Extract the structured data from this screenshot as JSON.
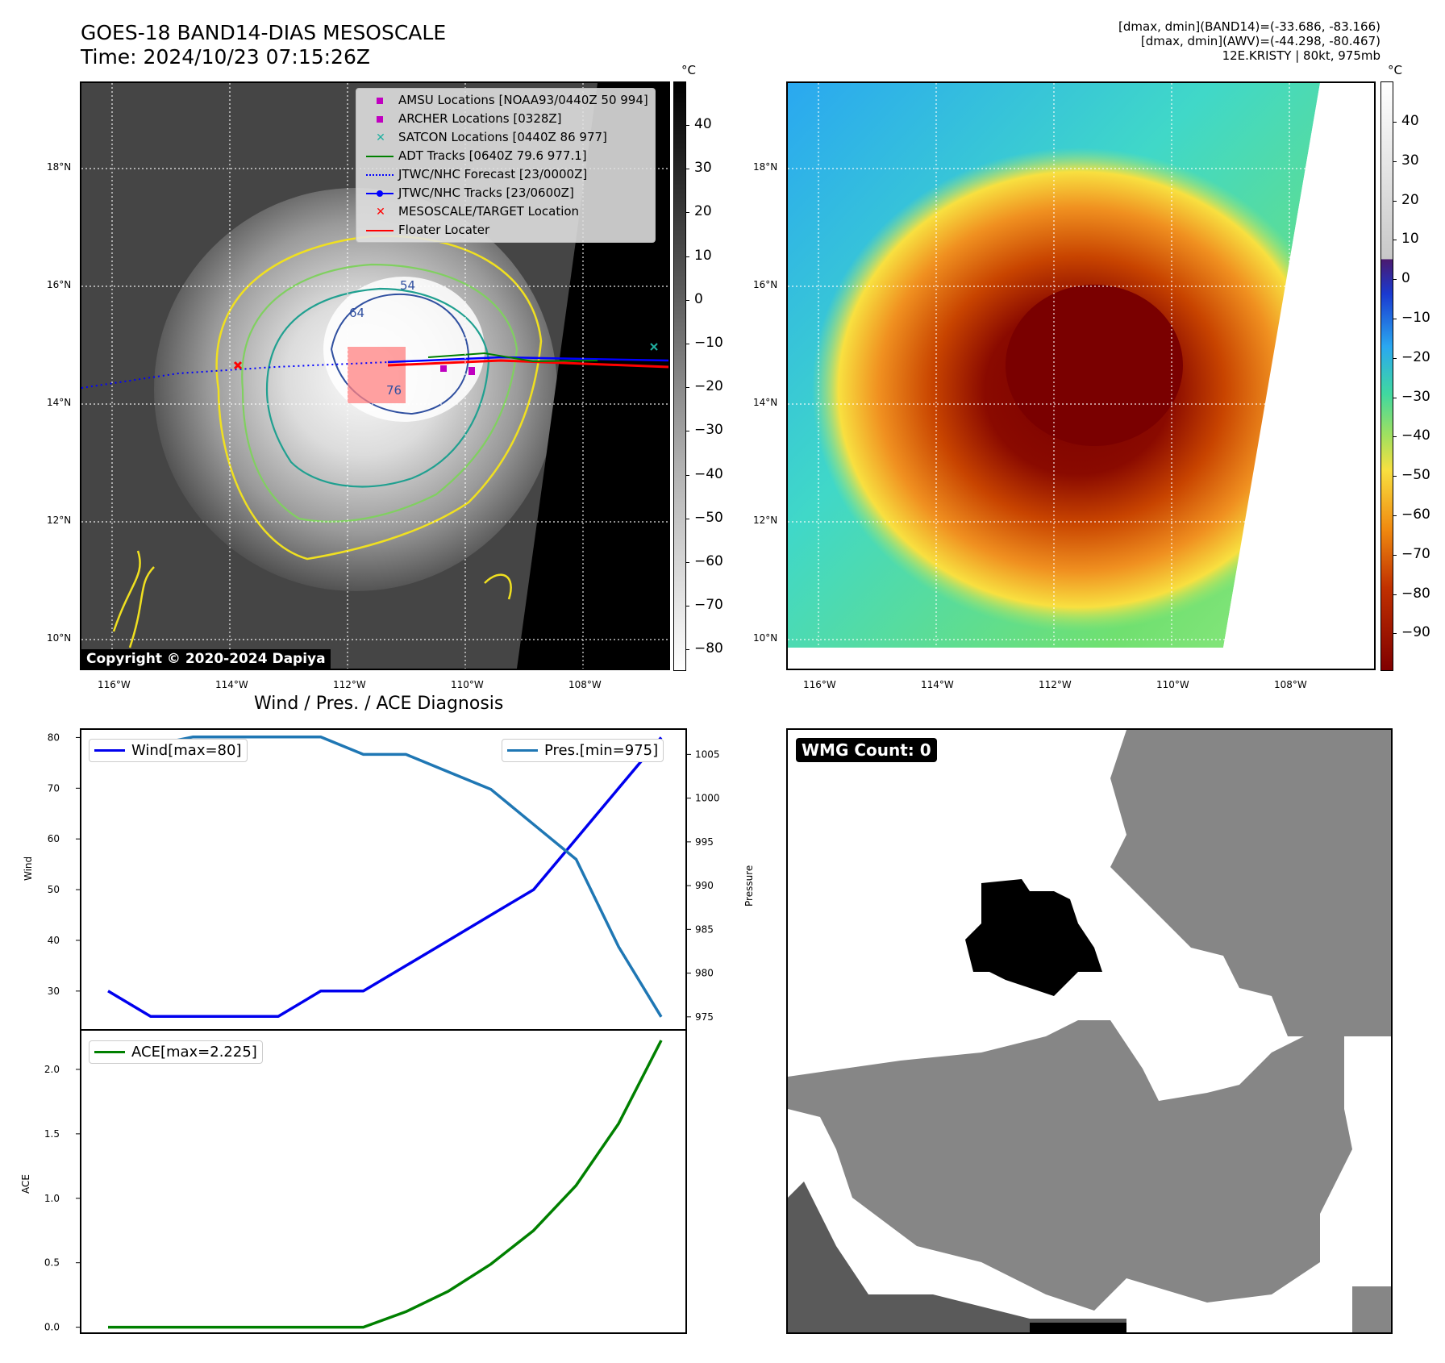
{
  "header": {
    "title_line1": "GOES-18 BAND14-DIAS MESOSCALE",
    "title_line2": "Time: 2024/10/23 07:15:26Z",
    "info_line1": "[dmax, dmin](BAND14)=(-33.686, -83.166)",
    "info_line2": "[dmax, dmin](AWV)=(-44.298, -80.467)",
    "info_line3": "12E.KRISTY | 80kt, 975mb"
  },
  "map": {
    "lon_ticks": [
      "116°W",
      "114°W",
      "112°W",
      "110°W",
      "108°W"
    ],
    "lat_ticks": [
      "18°N",
      "16°N",
      "14°N",
      "12°N",
      "10°N"
    ],
    "contour_labels": [
      "54",
      "64",
      "76"
    ],
    "copyright": "Copyright © 2020-2024 Dapiya"
  },
  "legend": {
    "items": [
      {
        "label": "AMSU Locations [NOAA93/0440Z 50 994]",
        "marker": "square",
        "color": "#c000c0"
      },
      {
        "label": "ARCHER Locations [0328Z]",
        "marker": "square",
        "color": "#c000c0"
      },
      {
        "label": "SATCON Locations [0440Z 86 977]",
        "marker": "x",
        "color": "#20b0a0"
      },
      {
        "label": "ADT Tracks [0640Z 79.6 977.1]",
        "marker": "line",
        "color": "#008000"
      },
      {
        "label": "JTWC/NHC Forecast [23/0000Z]",
        "marker": "dotted",
        "color": "#0000ff"
      },
      {
        "label": "JTWC/NHC Tracks [23/0600Z]",
        "marker": "linedot",
        "color": "#0000ff"
      },
      {
        "label": "MESOSCALE/TARGET Location",
        "marker": "x",
        "color": "#ff0000"
      },
      {
        "label": "Floater Locater",
        "marker": "line",
        "color": "#ff0000"
      }
    ]
  },
  "colorbar_left": {
    "unit": "°C",
    "ticks": [
      "40",
      "30",
      "20",
      "10",
      "0",
      "−10",
      "−20",
      "−30",
      "−40",
      "−50",
      "−60",
      "−70",
      "−80"
    ]
  },
  "colorbar_right": {
    "unit": "°C",
    "ticks": [
      "40",
      "30",
      "20",
      "10",
      "0",
      "−10",
      "−20",
      "−30",
      "−40",
      "−50",
      "−60",
      "−70",
      "−80",
      "−90"
    ]
  },
  "diag": {
    "title": "Wind / Pres. / ACE Diagnosis",
    "wind_ylabel": "Wind",
    "pres_ylabel": "Pressure",
    "ace_ylabel": "ACE",
    "wind_yticks": [
      "80",
      "70",
      "60",
      "50",
      "40",
      "30"
    ],
    "pres_yticks": [
      "1005",
      "1000",
      "995",
      "990",
      "985",
      "980",
      "975"
    ],
    "ace_yticks": [
      "2.0",
      "1.5",
      "1.0",
      "0.5",
      "0.0"
    ],
    "wind_legend": "Wind[max=80]",
    "pres_legend": "Pres.[min=975]",
    "ace_legend": "ACE[max=2.225]"
  },
  "wmg": {
    "label": "WMG Count: 0"
  },
  "chart_data": [
    {
      "type": "line",
      "title": "Wind / Pres. / ACE Diagnosis",
      "ylabel": "Wind",
      "ylim": [
        22.5,
        81.5
      ],
      "series": [
        {
          "name": "Wind[max=80]",
          "color": "#0000ee",
          "values": [
            30,
            25,
            25,
            25,
            25,
            30,
            30,
            35,
            40,
            45,
            50,
            60,
            70,
            80
          ]
        }
      ]
    },
    {
      "type": "line",
      "ylabel": "Pressure",
      "ylim": [
        973.6,
        1007.8
      ],
      "series": [
        {
          "name": "Pres.[min=975]",
          "color": "#1f77b4",
          "values": [
            1006,
            1006,
            1007,
            1007,
            1007,
            1007,
            1005,
            1005,
            1003,
            1001,
            997,
            993,
            983,
            975
          ]
        }
      ]
    },
    {
      "type": "line",
      "ylabel": "ACE",
      "ylim": [
        -0.04,
        2.3
      ],
      "series": [
        {
          "name": "ACE[max=2.225]",
          "color": "#008000",
          "values": [
            0,
            0,
            0,
            0,
            0,
            0,
            0,
            0.12,
            0.28,
            0.49,
            0.75,
            1.1,
            1.58,
            2.225
          ]
        }
      ]
    }
  ]
}
